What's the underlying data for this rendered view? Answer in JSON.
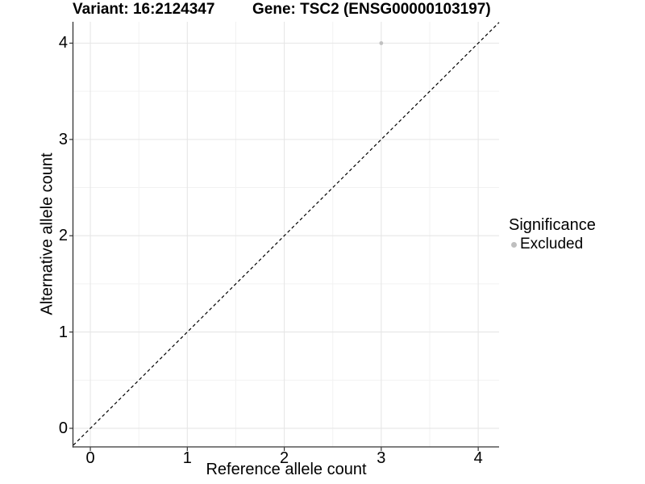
{
  "chart_data": {
    "type": "scatter",
    "title_left": "Variant: 16:2124347",
    "title_right": "Gene: TSC2 (ENSG00000103197)",
    "xlabel": "Reference allele count",
    "ylabel": "Alternative allele count",
    "xlim": [
      -0.175,
      4.215
    ],
    "ylim": [
      -0.193,
      4.222
    ],
    "x_ticks": [
      0,
      1,
      2,
      3,
      4
    ],
    "y_ticks": [
      0,
      1,
      2,
      3,
      4
    ],
    "x_minor_ticks": [
      0.5,
      1.5,
      2.5,
      3.5
    ],
    "y_minor_ticks": [
      0.5,
      1.5,
      2.5,
      3.5
    ],
    "grid": true,
    "reference_line": {
      "type": "identity",
      "style": "dashed",
      "color": "#000000"
    },
    "series": [
      {
        "name": "Excluded",
        "color": "#c1c1c1",
        "points": [
          {
            "x": 3,
            "y": 4
          }
        ]
      }
    ],
    "legend": {
      "title": "Significance",
      "position": "right",
      "items": [
        {
          "label": "Excluded",
          "color": "#bfbfbf"
        }
      ]
    }
  },
  "style": {
    "background": "#ffffff",
    "text_color": "#000000",
    "grid_major_color": "#e6e6e6",
    "grid_minor_color": "#f2f2f2",
    "axis_color": "#333333",
    "point_color": "#c1c1c1",
    "dashed_line_color": "#000000"
  }
}
